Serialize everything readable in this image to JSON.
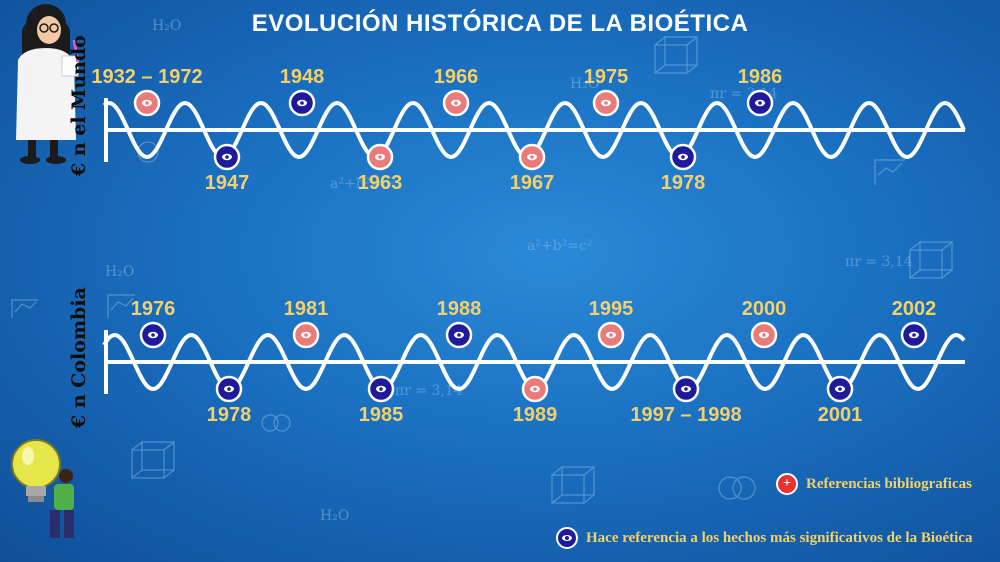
{
  "title": "EVOLUCIÓN HISTÓRICA DE LA BIOÉTICA",
  "labels": {
    "world": "€ n el Mundo",
    "colombia": "€ n Colombia"
  },
  "colors": {
    "reference": "#e97b7b",
    "significant": "#1f1a9a",
    "year": "#f3d06a",
    "wave": "#ffffff"
  },
  "timelines": {
    "world": [
      {
        "label": "1932 – 1972",
        "type": "reference",
        "pos": "up"
      },
      {
        "label": "1947",
        "type": "significant",
        "pos": "down"
      },
      {
        "label": "1948",
        "type": "significant",
        "pos": "up"
      },
      {
        "label": "1963",
        "type": "reference",
        "pos": "down"
      },
      {
        "label": "1966",
        "type": "reference",
        "pos": "up"
      },
      {
        "label": "1967",
        "type": "reference",
        "pos": "down"
      },
      {
        "label": "1975",
        "type": "reference",
        "pos": "up"
      },
      {
        "label": "1978",
        "type": "significant",
        "pos": "down"
      },
      {
        "label": "1986",
        "type": "significant",
        "pos": "up"
      }
    ],
    "colombia": [
      {
        "label": "1976",
        "type": "significant",
        "pos": "up"
      },
      {
        "label": "1978",
        "type": "significant",
        "pos": "down"
      },
      {
        "label": "1981",
        "type": "reference",
        "pos": "up"
      },
      {
        "label": "1985",
        "type": "significant",
        "pos": "down"
      },
      {
        "label": "1988",
        "type": "significant",
        "pos": "up"
      },
      {
        "label": "1989",
        "type": "reference",
        "pos": "down"
      },
      {
        "label": "1995",
        "type": "reference",
        "pos": "up"
      },
      {
        "label": "1997 – 1998",
        "type": "significant",
        "pos": "down"
      },
      {
        "label": "2000",
        "type": "reference",
        "pos": "up"
      },
      {
        "label": "2001",
        "type": "significant",
        "pos": "down"
      },
      {
        "label": "2002",
        "type": "significant",
        "pos": "up"
      }
    ]
  },
  "legend": {
    "reference_icon": "+",
    "reference_label": "Referencias bibliograficas",
    "significant_label": "Hace referencia a los hechos más significativos de la Bioética"
  },
  "decor": {
    "h2o": "H₂O",
    "formula": "a²+b²=c²",
    "pi": "πr = 3,14"
  }
}
